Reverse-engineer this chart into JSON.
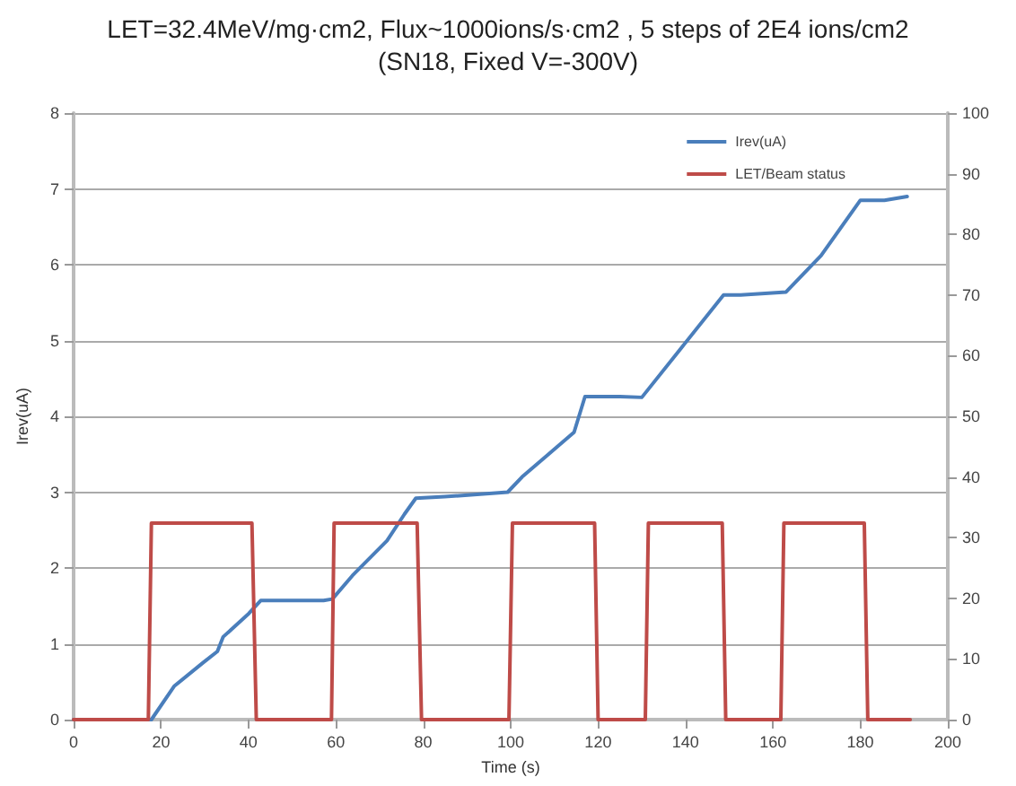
{
  "chart_data": {
    "type": "line",
    "title": "LET=32.4MeV/mg·cm2, Flux~1000ions/s·cm2 , 5 steps of 2E4 ions/cm2",
    "subtitle": "(SN18, Fixed V=-300V)",
    "xlabel": "Time (s)",
    "ylabel": "Irev(uA)",
    "xlim": [
      0,
      200
    ],
    "xticks": [
      0,
      20,
      40,
      60,
      80,
      100,
      120,
      140,
      160,
      180,
      200
    ],
    "ylim": [
      0,
      8
    ],
    "yticks": [
      0,
      1,
      2,
      3,
      4,
      5,
      6,
      7,
      8
    ],
    "y2lim": [
      0,
      100
    ],
    "y2ticks": [
      0,
      10,
      20,
      30,
      40,
      50,
      60,
      70,
      80,
      90,
      100
    ],
    "grid": "y",
    "legend": "top right",
    "marker": "none",
    "line_style": "solid",
    "series": [
      {
        "name": "Irev(uA)",
        "color": "#4a7ebb",
        "x": [
          0,
          17.8,
          23,
          29.6,
          32.9,
          34.2,
          40.1,
          42.8,
          57.2,
          59.2,
          63.8,
          71.7,
          75.7,
          78.3,
          84.9,
          99.3,
          102.6,
          114.5,
          117,
          125,
          130,
          139,
          148.7,
          152.6,
          163,
          171,
          180,
          185.5,
          190.7
        ],
        "values": [
          0,
          0,
          0.44,
          0.75,
          0.9,
          1.09,
          1.4,
          1.57,
          1.57,
          1.59,
          1.9,
          2.36,
          2.71,
          2.92,
          2.94,
          3.0,
          3.2,
          3.79,
          4.26,
          4.26,
          4.25,
          4.9,
          5.6,
          5.6,
          5.64,
          6.12,
          6.85,
          6.85,
          6.9
        ]
      },
      {
        "name": "LET/Beam status",
        "color": "#be4b48",
        "axis": "y2",
        "x": [
          0,
          17.1,
          17.8,
          40.8,
          41.8,
          59,
          59.6,
          78.6,
          79.6,
          99.6,
          100.4,
          119.2,
          120,
          130.8,
          131.5,
          148.4,
          149.2,
          161.8,
          162.5,
          180.9,
          181.7,
          191.4
        ],
        "values": [
          0,
          0,
          32.4,
          32.4,
          0,
          0,
          32.4,
          32.4,
          0,
          0,
          32.4,
          32.4,
          0,
          0,
          32.4,
          32.4,
          0,
          0,
          32.4,
          32.4,
          0,
          0
        ]
      }
    ]
  }
}
